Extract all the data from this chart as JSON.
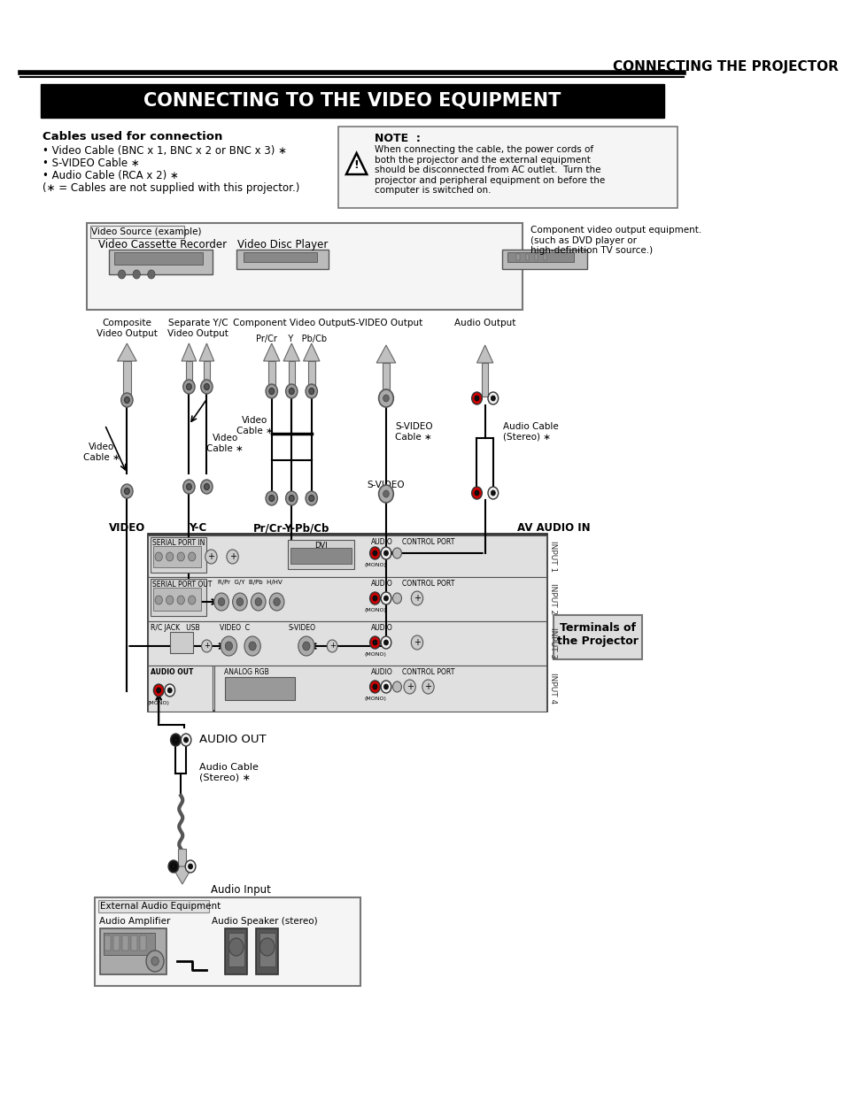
{
  "page_bg": "#ffffff",
  "header_title": "CONNECTING THE PROJECTOR",
  "section_title": "CONNECTING TO THE VIDEO EQUIPMENT",
  "cables_header": "Cables used for connection",
  "cables_lines": [
    "• Video Cable (BNC x 1, BNC x 2 or BNC x 3) ∗",
    "• S-VIDEO Cable ∗",
    "• Audio Cable (RCA x 2) ∗",
    "(∗ = Cables are not supplied with this projector.)"
  ],
  "note_title": "NOTE  :",
  "note_text": "When connecting the cable, the power cords of\nboth the projector and the external equipment\nshould be disconnected from AC outlet.  Turn the\nprojector and peripheral equipment on before the\ncomputer is switched on.",
  "video_source_label": "Video Source (example)",
  "device1_label": "Video Cassette Recorder",
  "device2_label": "Video Disc Player",
  "component_label": "Component video output equipment.\n(such as DVD player or\nhigh-definition TV source.)",
  "conn_labels": [
    "Composite\nVideo Output",
    "Separate Y/C\nVideo Output",
    "Component Video Output",
    "S-VIDEO Output",
    "Audio Output"
  ],
  "sublabel": "Pr/Cr    Y   Pb/Cb",
  "mid_labels": [
    "Video\nCable ∗",
    "Video\nCable ∗",
    "Video\nCable ∗",
    "S-VIDEO\nCable ∗",
    "Audio Cable\n(Stereo) ∗"
  ],
  "svideo_label": "S-VIDEO",
  "bot_labels": [
    "VIDEO",
    "Y-C",
    "Pr/Cr-Y-Pb/Cb",
    "AV AUDIO IN"
  ],
  "terminals_label": "Terminals of\nthe Projector",
  "audio_out_label": "AUDIO OUT",
  "audio_cable_label": "Audio Cable\n(Stereo) ∗",
  "audio_input_label": "Audio Input",
  "ext_audio_label": "External Audio Equipment",
  "amp_label": "Audio Amplifier",
  "speaker_label": "Audio Speaker (stereo)"
}
